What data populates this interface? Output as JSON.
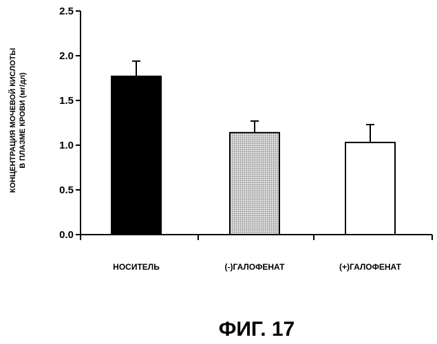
{
  "figure": {
    "caption": "ФИГ. 17"
  },
  "chart_data": {
    "type": "bar",
    "categories": [
      "НОСИТЕЛЬ",
      "(-)ГАЛОФЕНАТ",
      "(+)ГАЛОФЕНАТ"
    ],
    "values": [
      1.77,
      1.14,
      1.03
    ],
    "errors": [
      0.17,
      0.13,
      0.2
    ],
    "bar_fills": [
      "solid-black",
      "dotted-gray",
      "white"
    ],
    "ylabel_lines": [
      "КОНЦЕНТРАЦИЯ МОЧЕВОЙ КИСЛОТЫ",
      "В ПЛАЗМЕ КРОВИ (мг/дл)"
    ],
    "ylim": [
      0,
      2.5
    ],
    "yticks": [
      "0.0",
      "0.5",
      "1.0",
      "1.5",
      "2.0",
      "2.5"
    ],
    "grid": false,
    "colors": {
      "ink": "#000000",
      "dots": "#7a7a7a",
      "background": "#ffffff"
    }
  }
}
